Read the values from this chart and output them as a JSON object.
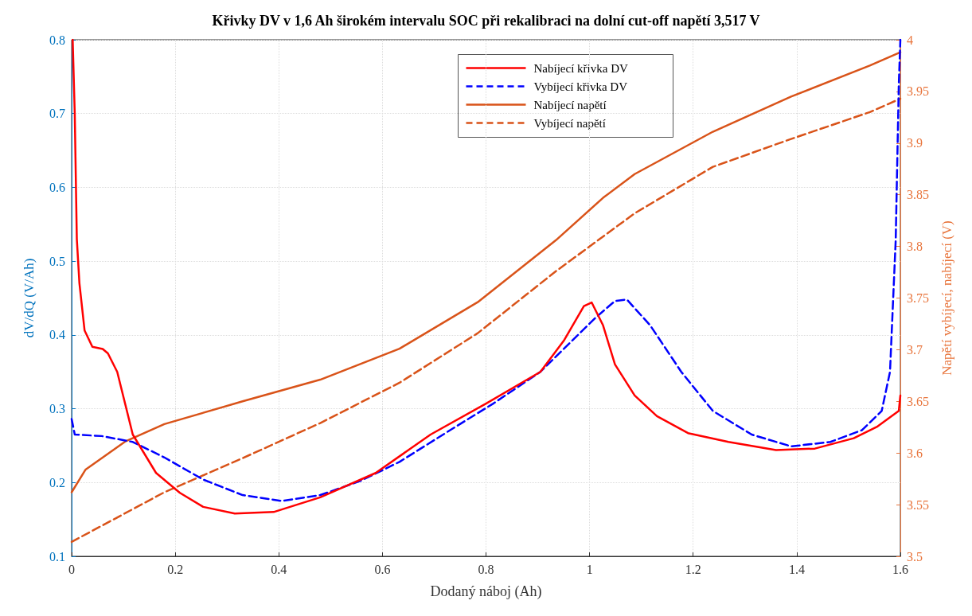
{
  "chart_data": {
    "type": "line",
    "title": "Křivky DV v 1,6 Ah širokém intervalu SOC při rekalibraci na dolní cut-off napětí 3,517 V",
    "xlabel": "Dodaný náboj (Ah)",
    "ylabel": "dV/dQ (V/Ah)",
    "y2label": "Napětí vybíjecí, nabíjecí (V)",
    "xlim": [
      0,
      1.6
    ],
    "xticks": [
      0,
      0.2,
      0.4,
      0.6,
      0.8,
      1,
      1.2,
      1.4,
      1.6
    ],
    "ylim": [
      0.1,
      0.8
    ],
    "yticks": [
      0.1,
      0.2,
      0.3,
      0.4,
      0.5,
      0.6,
      0.7,
      0.8
    ],
    "y2lim": [
      3.5,
      4
    ],
    "y2ticks": [
      3.5,
      3.55,
      3.6,
      3.65,
      3.7,
      3.75,
      3.8,
      3.85,
      3.9,
      3.95,
      4
    ],
    "grid": true,
    "legend": "top right",
    "marker": "none",
    "series": [
      {
        "name": "Nabíjecí křivka DV",
        "color": "#ff0000",
        "line_style": "solid",
        "x": [
          0.002,
          0.006,
          0.01,
          0.015,
          0.025,
          0.04,
          0.06,
          0.07,
          0.088,
          0.118,
          0.163,
          0.209,
          0.254,
          0.315,
          0.39,
          0.48,
          0.587,
          0.693,
          0.8,
          0.905,
          0.95,
          0.989,
          1.004,
          1.026,
          1.049,
          1.087,
          1.13,
          1.19,
          1.268,
          1.36,
          1.435,
          1.51,
          1.556,
          1.597,
          1.6
        ],
        "values": [
          0.8,
          0.7,
          0.53,
          0.47,
          0.406,
          0.384,
          0.381,
          0.375,
          0.35,
          0.265,
          0.213,
          0.186,
          0.167,
          0.158,
          0.16,
          0.18,
          0.213,
          0.265,
          0.307,
          0.35,
          0.392,
          0.439,
          0.444,
          0.413,
          0.36,
          0.318,
          0.29,
          0.267,
          0.255,
          0.244,
          0.246,
          0.26,
          0.276,
          0.297,
          0.318
        ]
      },
      {
        "name": "Vybíjecí křivka DV",
        "color": "#0000ff",
        "line_style": "dashed",
        "x": [
          0,
          0.006,
          0.058,
          0.118,
          0.179,
          0.254,
          0.33,
          0.406,
          0.48,
          0.557,
          0.633,
          0.724,
          0.814,
          0.905,
          0.966,
          1.011,
          1.049,
          1.072,
          1.117,
          1.177,
          1.238,
          1.313,
          1.389,
          1.465,
          1.526,
          1.564,
          1.58,
          1.591,
          1.597,
          1.6
        ],
        "values": [
          0.286,
          0.265,
          0.263,
          0.255,
          0.234,
          0.204,
          0.183,
          0.175,
          0.183,
          0.202,
          0.228,
          0.268,
          0.307,
          0.35,
          0.392,
          0.423,
          0.446,
          0.448,
          0.413,
          0.35,
          0.297,
          0.265,
          0.249,
          0.255,
          0.271,
          0.297,
          0.35,
          0.528,
          0.739,
          0.8
        ]
      },
      {
        "name": "Nabíjecí napětí",
        "color": "#d95319",
        "line_style": "solid",
        "axis": "y2",
        "x": [
          0,
          0.027,
          0.103,
          0.179,
          0.33,
          0.48,
          0.633,
          0.784,
          0.935,
          1.026,
          1.087,
          1.238,
          1.389,
          1.541,
          1.6
        ],
        "values": [
          3.562,
          3.584,
          3.611,
          3.628,
          3.65,
          3.671,
          3.701,
          3.746,
          3.806,
          3.847,
          3.87,
          3.911,
          3.945,
          3.975,
          3.988
        ]
      },
      {
        "name": "Vybíjecí napětí",
        "color": "#d95319",
        "line_style": "dashed",
        "axis": "y2",
        "x": [
          0,
          0.179,
          0.33,
          0.48,
          0.633,
          0.784,
          0.935,
          1.087,
          1.238,
          1.389,
          1.541,
          1.6
        ],
        "values": [
          3.514,
          3.562,
          3.595,
          3.629,
          3.668,
          3.716,
          3.776,
          3.832,
          3.877,
          3.904,
          3.93,
          3.943
        ]
      }
    ]
  }
}
